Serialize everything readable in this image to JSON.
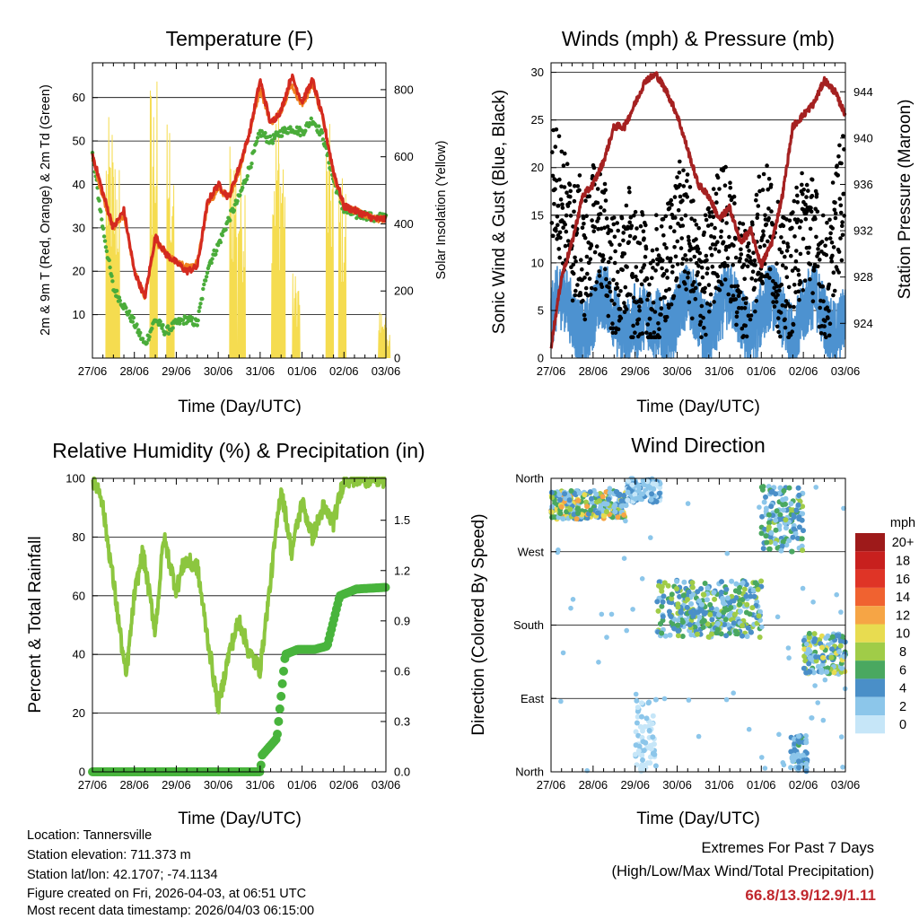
{
  "chart_data": [
    {
      "type": "line",
      "title": "Temperature (F)",
      "xlabel": "Time (Day/UTC)",
      "ylabel": "2m & 9m T (Red, Orange) & 2m Td (Green)",
      "ylabel_right": "Solar Insolation (Yellow)",
      "x_ticks": [
        "27/06",
        "28/06",
        "29/06",
        "30/06",
        "31/06",
        "01/06",
        "02/06",
        "03/06"
      ],
      "ylim": [
        0,
        68
      ],
      "y_ticks": [
        10,
        20,
        30,
        40,
        50,
        60
      ],
      "ylim_right": [
        0,
        880
      ],
      "y_ticks_right": [
        0,
        200,
        400,
        600,
        800
      ],
      "x_days": [
        0,
        0.25,
        0.5,
        0.75,
        1,
        1.25,
        1.5,
        1.75,
        2,
        2.25,
        2.5,
        2.75,
        3,
        3.25,
        3.5,
        3.75,
        4,
        4.25,
        4.5,
        4.75,
        5,
        5.25,
        5.5,
        5.75,
        6,
        6.25,
        6.5,
        6.75,
        7
      ],
      "series": [
        {
          "name": "2m T",
          "color": "#d42a1f",
          "values": [
            47,
            38,
            30,
            34,
            20,
            14,
            28,
            24,
            22,
            20,
            21,
            36,
            40,
            37,
            44,
            52,
            64,
            54,
            57,
            65,
            59,
            64,
            55,
            43,
            35,
            34,
            33,
            32,
            32
          ]
        },
        {
          "name": "9m T",
          "color": "#f08020",
          "values": [
            46,
            37,
            30,
            33,
            20,
            14,
            27,
            24,
            22,
            21,
            22,
            35,
            39,
            37,
            43,
            52,
            62,
            54,
            57,
            63,
            58,
            63,
            55,
            42,
            35,
            34,
            33,
            32,
            32
          ]
        },
        {
          "name": "2m Td",
          "color": "#4aac3a",
          "values": [
            47,
            30,
            16,
            12,
            8,
            3,
            9,
            6,
            8,
            9,
            8,
            21,
            26,
            32,
            37,
            44,
            52,
            50,
            52,
            53,
            52,
            55,
            51,
            41,
            34,
            33,
            33,
            32,
            33
          ]
        }
      ],
      "insolation": {
        "name": "Solar Insolation",
        "color": "#f5dc50",
        "peaks": [
          [
            0.4,
            720
          ],
          [
            0.55,
            650
          ],
          [
            1.45,
            870
          ],
          [
            1.85,
            760
          ],
          [
            2.5,
            0
          ],
          [
            3.35,
            700
          ],
          [
            3.55,
            620
          ],
          [
            4.35,
            800
          ],
          [
            4.5,
            720
          ],
          [
            4.85,
            260
          ],
          [
            5.65,
            700
          ],
          [
            5.95,
            560
          ],
          [
            6.9,
            150
          ],
          [
            7,
            100
          ]
        ]
      }
    },
    {
      "type": "scatter",
      "title": "Winds (mph) & Pressure (mb)",
      "xlabel": "Time (Day/UTC)",
      "ylabel": "Sonic Wind & Gust (Blue, Black)",
      "ylabel_right": "Station Pressure (Maroon)",
      "x_ticks": [
        "27/06",
        "28/06",
        "29/06",
        "30/06",
        "31/06",
        "01/06",
        "02/06",
        "03/06"
      ],
      "ylim": [
        0,
        31
      ],
      "y_ticks": [
        0,
        5,
        10,
        15,
        20,
        25,
        30
      ],
      "ylim_right": [
        921,
        946.5
      ],
      "y_ticks_right": [
        924,
        928,
        932,
        936,
        940,
        944
      ],
      "series": [
        {
          "name": "Pressure",
          "color": "#a52121",
          "x": [
            0,
            0.25,
            0.5,
            0.75,
            1,
            1.25,
            1.5,
            1.75,
            2,
            2.25,
            2.5,
            2.75,
            3,
            3.25,
            3.5,
            3.75,
            4,
            4.25,
            4.5,
            4.75,
            5,
            5.25,
            5.5,
            5.75,
            6,
            6.25,
            6.5,
            6.75,
            7
          ],
          "values": [
            922,
            928,
            931,
            935,
            936,
            938,
            941,
            941,
            943,
            945,
            945.5,
            944,
            942,
            939,
            936,
            935,
            933,
            934,
            931,
            932,
            929,
            931,
            935,
            941,
            942,
            943,
            945,
            944,
            942
          ]
        },
        {
          "name": "Sonic Wind",
          "color": "#4d92d0",
          "base": 4.5,
          "spread": 4.5
        },
        {
          "name": "Gust",
          "color": "#000000",
          "base": 11,
          "spread": 9
        }
      ]
    },
    {
      "type": "line",
      "title": "Relative Humidity (%) & Precipitation (in)",
      "xlabel": "Time (Day/UTC)",
      "ylabel": "Percent & Total Rainfall",
      "x_ticks": [
        "27/06",
        "28/06",
        "29/06",
        "30/06",
        "31/06",
        "01/06",
        "02/06",
        "03/06"
      ],
      "ylim": [
        0,
        100
      ],
      "y_ticks": [
        0,
        20,
        40,
        60,
        80,
        100
      ],
      "ylim_right": [
        0,
        1.75
      ],
      "y_ticks_right": [
        "0.0",
        "0.3",
        "0.6",
        "0.9",
        "1.2",
        "1.5"
      ],
      "series": [
        {
          "name": "Relative Humidity",
          "color": "#8cc63f",
          "x": [
            0,
            0.2,
            0.5,
            0.8,
            1,
            1.2,
            1.5,
            1.7,
            2,
            2.2,
            2.5,
            2.7,
            3,
            3.25,
            3.5,
            3.75,
            4,
            4.25,
            4.5,
            4.75,
            5,
            5.25,
            5.5,
            5.75,
            6,
            6.25,
            6.5,
            6.75,
            7
          ],
          "values": [
            100,
            95,
            65,
            32,
            60,
            75,
            48,
            80,
            62,
            72,
            70,
            50,
            22,
            40,
            52,
            40,
            35,
            65,
            97,
            75,
            92,
            80,
            90,
            85,
            100,
            100,
            100,
            100,
            99
          ]
        },
        {
          "name": "Total Precipitation",
          "color": "#48b43c",
          "x": [
            0,
            4,
            4.05,
            4.4,
            4.6,
            4.9,
            5.3,
            5.6,
            5.75,
            5.9,
            6.3,
            7
          ],
          "values": [
            0,
            0,
            0.1,
            0.2,
            0.7,
            0.73,
            0.73,
            0.75,
            0.9,
            1.05,
            1.09,
            1.1
          ]
        }
      ]
    },
    {
      "type": "scatter",
      "title": "Wind Direction",
      "xlabel": "Time (Day/UTC)",
      "ylabel": "Direction (Colored By Speed)",
      "x_ticks": [
        "27/06",
        "28/06",
        "29/06",
        "30/06",
        "31/06",
        "01/06",
        "02/06",
        "03/06"
      ],
      "y_ticks": [
        "North",
        "East",
        "South",
        "West",
        "North"
      ],
      "ylim": [
        0,
        360
      ],
      "clusters": [
        {
          "x": [
            0,
            1.8
          ],
          "dir": [
            310,
            345
          ],
          "speed": [
            2,
            12
          ]
        },
        {
          "x": [
            1.8,
            2.6
          ],
          "dir": [
            330,
            360
          ],
          "speed": [
            0,
            5
          ]
        },
        {
          "x": [
            2.0,
            2.5
          ],
          "dir": [
            0,
            90
          ],
          "speed": [
            0,
            3
          ]
        },
        {
          "x": [
            2.5,
            5.0
          ],
          "dir": [
            165,
            235
          ],
          "speed": [
            2,
            9
          ]
        },
        {
          "x": [
            5.0,
            6.0
          ],
          "dir": [
            270,
            350
          ],
          "speed": [
            2,
            8
          ]
        },
        {
          "x": [
            6.0,
            7.0
          ],
          "dir": [
            120,
            170
          ],
          "speed": [
            2,
            10
          ]
        },
        {
          "x": [
            5.7,
            6.1
          ],
          "dir": [
            0,
            45
          ],
          "speed": [
            1,
            6
          ]
        }
      ],
      "legend": {
        "title": "mph",
        "labels": [
          "20+",
          "18",
          "16",
          "14",
          "12",
          "10",
          "8",
          "6",
          "4",
          "2",
          "0"
        ],
        "colors": [
          "#9e1a1a",
          "#c8201e",
          "#df3426",
          "#f06230",
          "#f6a545",
          "#e8dc50",
          "#a0cc48",
          "#4aa860",
          "#4a8fc8",
          "#8cc6ea",
          "#c6e6f8"
        ]
      }
    }
  ],
  "info": {
    "location": "Location: Tannersville",
    "elevation": "Station elevation: 711.373 m",
    "latlon": "Station lat/lon: 42.1707; -74.1134",
    "created": "Figure created on Fri, 2026-04-03, at 06:51 UTC",
    "timestamp": "Most recent data timestamp: 2026/04/03 06:15:00"
  },
  "extremes": {
    "title": "Extremes For Past 7 Days",
    "subtitle": "(High/Low/Max Wind/Total Precipitation)",
    "values": "66.8/13.9/12.9/1.11"
  }
}
